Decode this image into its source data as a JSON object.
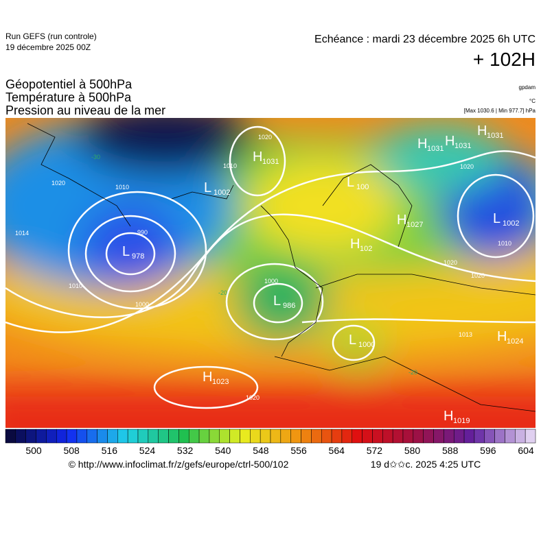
{
  "header": {
    "run": "Run GEFS (run controle)",
    "date": "19 décembre 2025 00Z",
    "echeance": "Echéance : mardi 23 décembre 2025 6h UTC",
    "lead": "+ 102H"
  },
  "titles": [
    "Géopotentiel à 500hPa",
    "Température à 500hPa",
    "Pression au niveau de la mer"
  ],
  "units": {
    "geopotential": "gpdam",
    "temperature": "°C",
    "pressure": "[Max 1030.6 | Min 977.7] hPa"
  },
  "pressure_centers": [
    {
      "type": "H",
      "value": "1031"
    },
    {
      "type": "H",
      "value": "1031"
    },
    {
      "type": "H",
      "value": "1031"
    },
    {
      "type": "H",
      "value": "1031"
    },
    {
      "type": "L",
      "value": "1002"
    },
    {
      "type": "L",
      "value": "100"
    },
    {
      "type": "H",
      "value": "1027"
    },
    {
      "type": "H",
      "value": "102"
    },
    {
      "type": "L",
      "value": "1002"
    },
    {
      "type": "L",
      "value": "978"
    },
    {
      "type": "L",
      "value": "986"
    },
    {
      "type": "L",
      "value": "1000"
    },
    {
      "type": "H",
      "value": "1024"
    },
    {
      "type": "H",
      "value": "1023"
    },
    {
      "type": "H",
      "value": "1019"
    }
  ],
  "isobar_labels": [
    "1020",
    "990",
    "1010",
    "1014",
    "1020",
    "1010",
    "1020",
    "1020",
    "1000",
    "1013",
    "1020",
    "1010",
    "1000",
    "1020",
    "1010",
    "-30",
    "-20",
    "-20"
  ],
  "colorbar": {
    "ticks": [
      "500",
      "508",
      "516",
      "524",
      "532",
      "540",
      "548",
      "556",
      "564",
      "572",
      "580",
      "588",
      "596",
      "604"
    ]
  },
  "footer": {
    "url": "© http://www.infoclimat.fr/z/gefs/europe/ctrl-500/102",
    "time": "19 d✩✩c. 2025  4:25 UTC"
  }
}
